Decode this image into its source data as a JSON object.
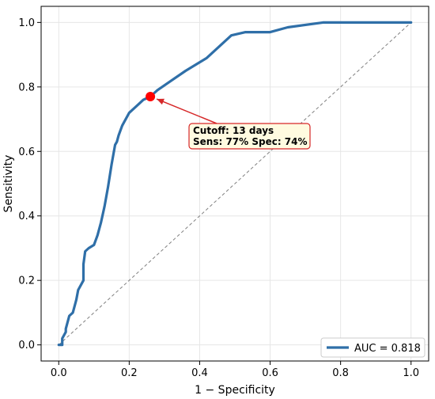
{
  "chart_data": {
    "type": "line",
    "xlabel": "1 − Specificity",
    "ylabel": "Sensitivity",
    "xlim": [
      -0.05,
      1.05
    ],
    "ylim": [
      -0.05,
      1.05
    ],
    "xticks": [
      "0.0",
      "0.2",
      "0.4",
      "0.6",
      "0.8",
      "1.0"
    ],
    "yticks": [
      "0.0",
      "0.2",
      "0.4",
      "0.6",
      "0.8",
      "1.0"
    ],
    "grid": true,
    "legend_position": "lower-right",
    "series": [
      {
        "name": "AUC = 0.818",
        "color": "#2f6fa8",
        "x": [
          0.0,
          0.01,
          0.01,
          0.02,
          0.02,
          0.03,
          0.04,
          0.05,
          0.055,
          0.07,
          0.07,
          0.075,
          0.085,
          0.1,
          0.11,
          0.12,
          0.13,
          0.14,
          0.15,
          0.16,
          0.165,
          0.17,
          0.18,
          0.2,
          0.22,
          0.24,
          0.26,
          0.28,
          0.32,
          0.36,
          0.42,
          0.49,
          0.53,
          0.6,
          0.65,
          0.75,
          1.0
        ],
        "y": [
          0.0,
          0.0,
          0.02,
          0.04,
          0.05,
          0.09,
          0.1,
          0.14,
          0.17,
          0.2,
          0.25,
          0.29,
          0.3,
          0.31,
          0.34,
          0.38,
          0.43,
          0.49,
          0.56,
          0.62,
          0.63,
          0.65,
          0.68,
          0.72,
          0.74,
          0.76,
          0.77,
          0.79,
          0.82,
          0.85,
          0.89,
          0.96,
          0.97,
          0.97,
          0.985,
          1.0,
          1.0
        ]
      },
      {
        "name": "",
        "style": "dashed",
        "color": "#808080",
        "x": [
          0.0,
          1.0
        ],
        "y": [
          0.0,
          1.0
        ]
      }
    ],
    "highlight_point": {
      "x": 0.26,
      "y": 0.77,
      "color": "#ff0000"
    },
    "annotation": {
      "line1": "Cutoff: 13 days",
      "line2": "Sens: 77% Spec: 74%",
      "border_color": "#d62728",
      "background": "#fffbe0"
    },
    "legend": {
      "label": "AUC = 0.818"
    }
  }
}
